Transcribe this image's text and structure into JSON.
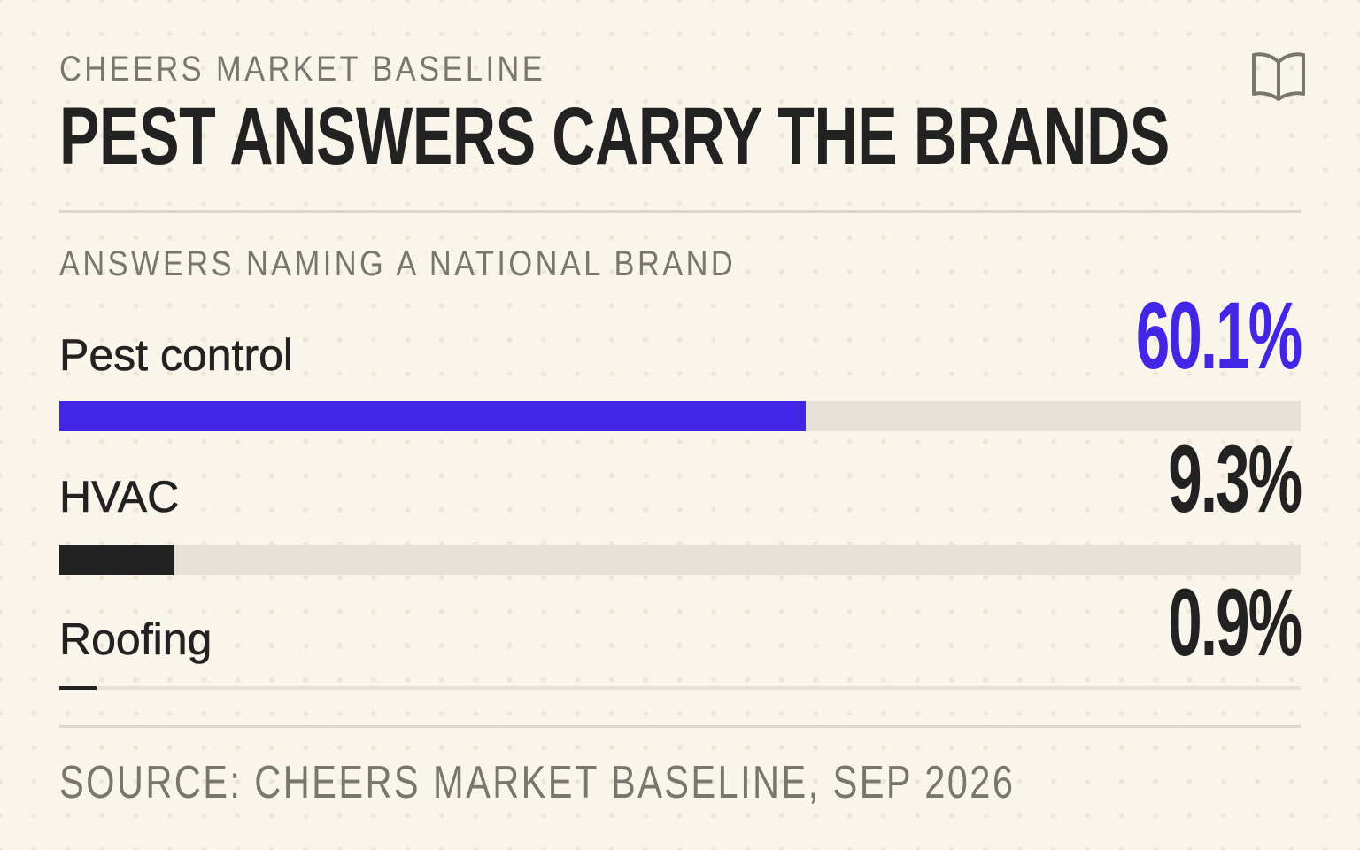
{
  "header": {
    "eyebrow": "CHEERS MARKET BASELINE",
    "title": "PEST ANSWERS CARRY THE BRANDS",
    "icon": "book-icon"
  },
  "chart_data": {
    "type": "bar",
    "orientation": "horizontal",
    "title": "PEST ANSWERS CARRY THE BRANDS",
    "subtitle": "ANSWERS NAMING A NATIONAL BRAND",
    "categories": [
      "Pest control",
      "HVAC",
      "Roofing"
    ],
    "values": [
      60.1,
      9.3,
      0.9
    ],
    "value_labels": [
      "60.1%",
      "9.3%",
      "0.9%"
    ],
    "unit": "%",
    "xlim": [
      0,
      100
    ],
    "grid": false,
    "highlight_color": "#4325e6",
    "bar_color": "#222222",
    "track_color": "#e5e1d7"
  },
  "source": "SOURCE: CHEERS MARKET BASELINE, SEP 2026"
}
